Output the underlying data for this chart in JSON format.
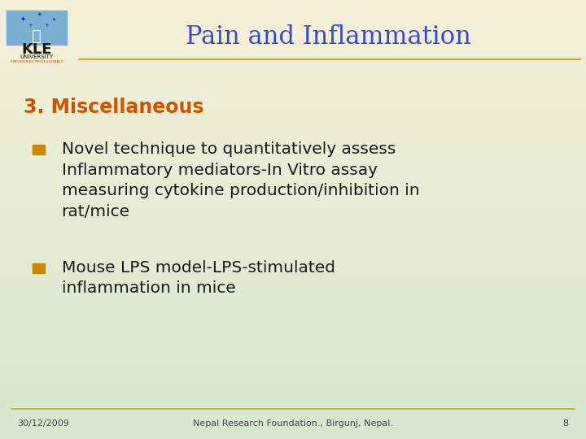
{
  "title": "Pain and Inflammation",
  "title_color": "#3B4BC8",
  "title_fontsize": 22,
  "bg_color_top": "#F5F0D8",
  "bg_color_bottom": "#D8E8D0",
  "section_heading": "3. Miscellaneous",
  "section_heading_color": "#CC5500",
  "section_heading_fontsize": 17,
  "bullet_color": "#CC8800",
  "bullet_text_color": "#1a1a1a",
  "bullet_fontsize": 14.5,
  "bullets": [
    "Novel technique to quantitatively assess\nInflammatory mediators-In Vitro assay\nmeasuring cytokine production/inhibition in\nrat/mice",
    "Mouse LPS model-LPS-stimulated\ninflammation in mice"
  ],
  "footer_date": "30/12/2009",
  "footer_center": "Nepal Research Foundation., Birgunj, Nepal.",
  "footer_page": "8",
  "footer_fontsize": 8,
  "footer_color": "#444444",
  "line_color": "#C8A840",
  "logo_box_color": "#6699CC",
  "logo_kle_color": "#1a1a1a",
  "logo_university_color": "#1a1a1a"
}
